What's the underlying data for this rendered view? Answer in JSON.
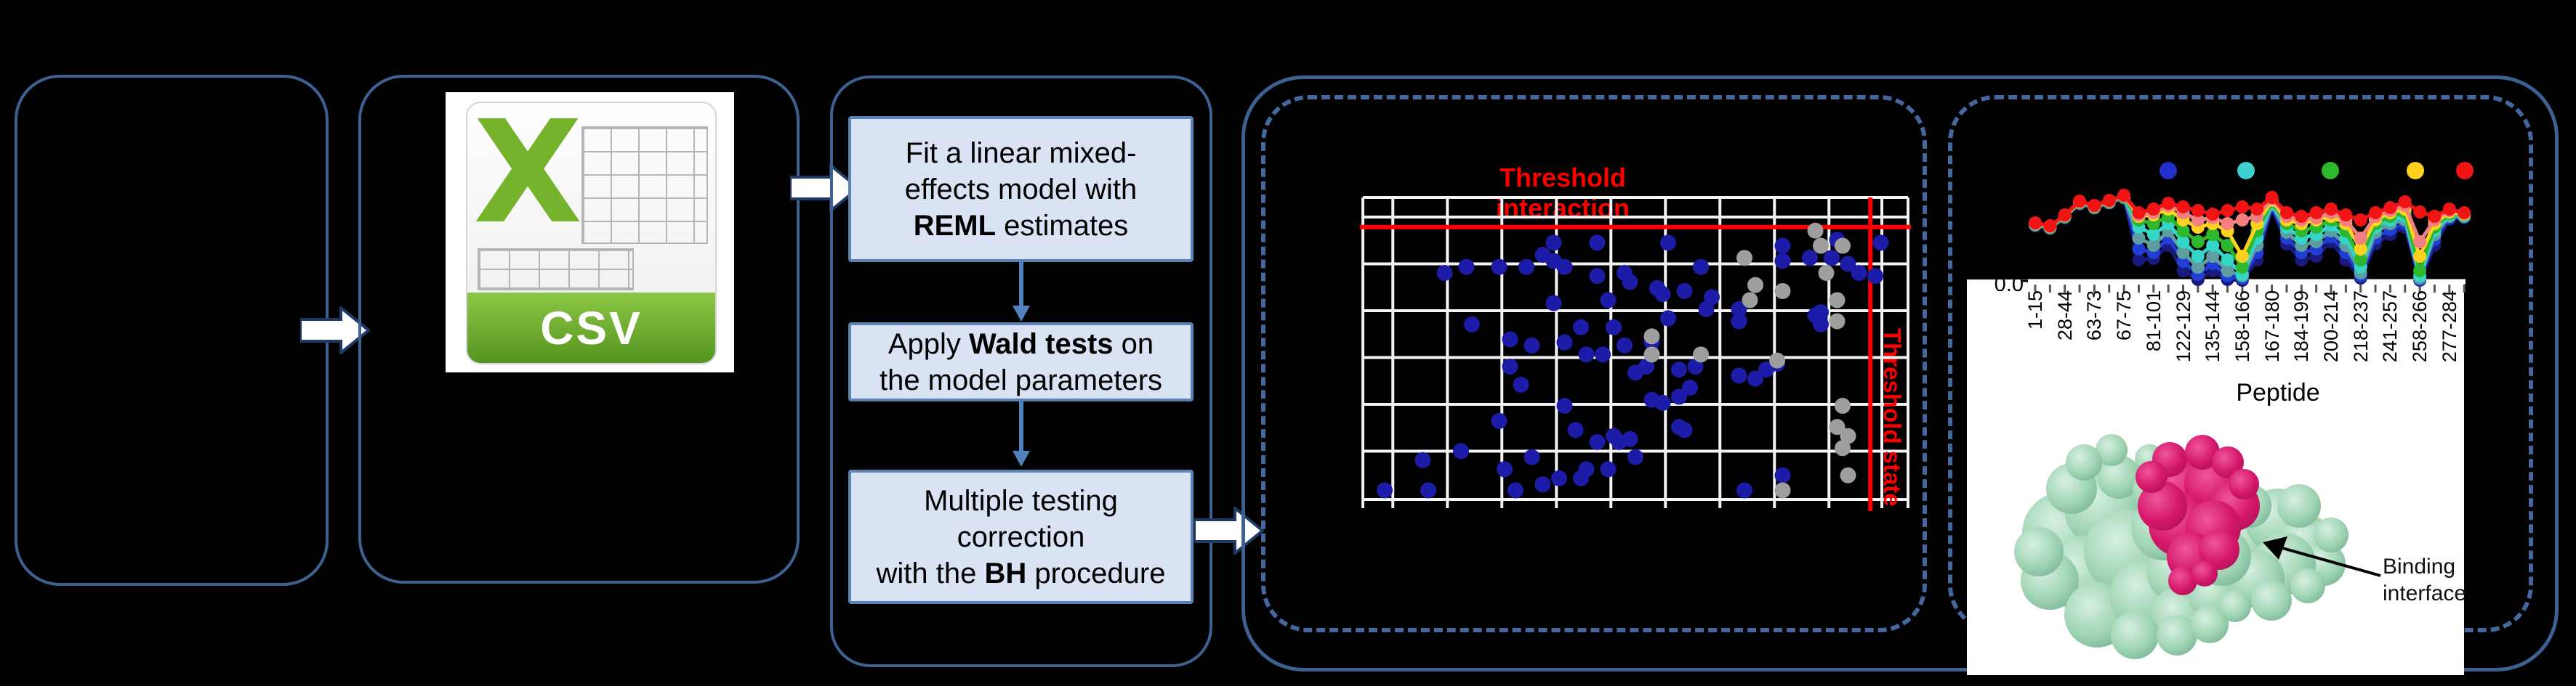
{
  "figure": {
    "bg": "#000000"
  },
  "border_colors": {
    "solid": "#3d6292",
    "dashed": "#44679e",
    "block_arrow_fill": "#ffffff",
    "block_arrow_outline": "#1f3864"
  },
  "csv_icon": {
    "letter": "X",
    "label": "CSV",
    "green": "#74b32b",
    "banner_top": "#8cc646",
    "banner_bottom": "#55951f"
  },
  "flowchart": {
    "step_fill": "#dae3f3",
    "step_border": "#5a82b4",
    "connector_color": "#4f81bd",
    "steps": [
      {
        "id": "reml",
        "lines": [
          [
            {
              "t": "Fit a linear mixed-"
            }
          ],
          [
            {
              "t": "effects model with"
            }
          ],
          [
            {
              "t": "REML",
              "b": true
            },
            {
              "t": " estimates"
            }
          ]
        ]
      },
      {
        "id": "wald",
        "lines": [
          [
            {
              "t": "Apply "
            },
            {
              "t": "Wald tests",
              "b": true
            },
            {
              "t": " on"
            }
          ],
          [
            {
              "t": "the model parameters"
            }
          ]
        ]
      },
      {
        "id": "bh",
        "lines": [
          [
            {
              "t": "Multiple testing"
            }
          ],
          [
            {
              "t": "correction"
            }
          ],
          [
            {
              "t": "with the "
            },
            {
              "t": "BH",
              "b": true
            },
            {
              "t": " procedure"
            }
          ]
        ]
      }
    ]
  },
  "chart_data": [
    {
      "type": "scatter",
      "title": "Threshold interaction",
      "title_color": "#ff0000",
      "x_threshold_label": "Threshold state",
      "grid_color": "#f2f2f2",
      "grid_on": true,
      "v_fracs": [
        0,
        0.055,
        0.155,
        0.255,
        0.355,
        0.455,
        0.555,
        0.655,
        0.755,
        0.855,
        0.952,
        1
      ],
      "h_fracs": [
        0,
        0.065,
        0.22,
        0.375,
        0.53,
        0.685,
        0.84,
        1
      ],
      "threshold_h_frac": 0.098,
      "threshold_v_frac": 0.931,
      "threshold_color": "#ff0000",
      "series": [
        {
          "name": "significant-interactions",
          "color": "#1c1ca8",
          "points": [
            [
              0.35,
              0.15
            ],
            [
              0.43,
              0.15
            ],
            [
              0.56,
              0.15
            ],
            [
              0.77,
              0.16
            ],
            [
              0.87,
              0.14
            ],
            [
              0.95,
              0.15
            ],
            [
              0.15,
              0.25
            ],
            [
              0.19,
              0.23
            ],
            [
              0.25,
              0.23
            ],
            [
              0.3,
              0.23
            ],
            [
              0.33,
              0.19
            ],
            [
              0.35,
              0.21
            ],
            [
              0.37,
              0.23
            ],
            [
              0.43,
              0.26
            ],
            [
              0.48,
              0.25
            ],
            [
              0.49,
              0.28
            ],
            [
              0.54,
              0.3
            ],
            [
              0.55,
              0.32
            ],
            [
              0.59,
              0.31
            ],
            [
              0.62,
              0.23
            ],
            [
              0.64,
              0.33
            ],
            [
              0.69,
              0.37
            ],
            [
              0.69,
              0.41
            ],
            [
              0.77,
              0.21
            ],
            [
              0.82,
              0.2
            ],
            [
              0.83,
              0.39
            ],
            [
              0.86,
              0.2
            ],
            [
              0.89,
              0.22
            ],
            [
              0.91,
              0.25
            ],
            [
              0.94,
              0.26
            ],
            [
              0.2,
              0.42
            ],
            [
              0.27,
              0.47
            ],
            [
              0.27,
              0.56
            ],
            [
              0.31,
              0.49
            ],
            [
              0.35,
              0.35
            ],
            [
              0.37,
              0.48
            ],
            [
              0.4,
              0.43
            ],
            [
              0.41,
              0.52
            ],
            [
              0.44,
              0.52
            ],
            [
              0.45,
              0.34
            ],
            [
              0.46,
              0.43
            ],
            [
              0.48,
              0.49
            ],
            [
              0.5,
              0.58
            ],
            [
              0.52,
              0.56
            ],
            [
              0.53,
              0.48
            ],
            [
              0.56,
              0.4
            ],
            [
              0.58,
              0.57
            ],
            [
              0.6,
              0.63
            ],
            [
              0.61,
              0.56
            ],
            [
              0.63,
              0.37
            ],
            [
              0.69,
              0.59
            ],
            [
              0.72,
              0.6
            ],
            [
              0.74,
              0.57
            ],
            [
              0.76,
              0.55
            ],
            [
              0.84,
              0.38
            ],
            [
              0.84,
              0.42
            ],
            [
              0.11,
              0.87
            ],
            [
              0.18,
              0.84
            ],
            [
              0.25,
              0.74
            ],
            [
              0.26,
              0.9
            ],
            [
              0.28,
              0.97
            ],
            [
              0.31,
              0.86
            ],
            [
              0.33,
              0.95
            ],
            [
              0.36,
              0.93
            ],
            [
              0.37,
              0.69
            ],
            [
              0.39,
              0.77
            ],
            [
              0.4,
              0.93
            ],
            [
              0.41,
              0.9
            ],
            [
              0.43,
              0.81
            ],
            [
              0.45,
              0.9
            ],
            [
              0.46,
              0.79
            ],
            [
              0.47,
              0.81
            ],
            [
              0.49,
              0.8
            ],
            [
              0.5,
              0.86
            ],
            [
              0.53,
              0.67
            ],
            [
              0.55,
              0.68
            ],
            [
              0.58,
              0.66
            ],
            [
              0.58,
              0.76
            ],
            [
              0.59,
              0.77
            ],
            [
              0.7,
              0.97
            ],
            [
              0.77,
              0.92
            ],
            [
              0.04,
              0.97
            ],
            [
              0.12,
              0.97
            ],
            [
              0.29,
              0.62
            ]
          ]
        },
        {
          "name": "filtered-points",
          "color": "#9e9e9e",
          "points": [
            [
              0.7,
              0.2
            ],
            [
              0.72,
              0.29
            ],
            [
              0.71,
              0.34
            ],
            [
              0.77,
              0.31
            ],
            [
              0.53,
              0.46
            ],
            [
              0.53,
              0.52
            ],
            [
              0.62,
              0.52
            ],
            [
              0.76,
              0.54
            ],
            [
              0.83,
              0.11
            ],
            [
              0.84,
              0.16
            ],
            [
              0.88,
              0.16
            ],
            [
              0.85,
              0.25
            ],
            [
              0.87,
              0.34
            ],
            [
              0.87,
              0.41
            ],
            [
              0.88,
              0.69
            ],
            [
              0.87,
              0.76
            ],
            [
              0.89,
              0.79
            ],
            [
              0.88,
              0.83
            ],
            [
              0.89,
              0.92
            ],
            [
              0.77,
              0.97
            ]
          ]
        }
      ]
    },
    {
      "type": "line",
      "xlabel": "Peptide",
      "y_tick_label": "0.0",
      "axis_color": "#ffffff",
      "tick_color": "#555555",
      "x_tick_labels": [
        "1-15",
        "28-44",
        "63-73",
        "67-75",
        "81-101",
        "122-129",
        "135-144",
        "158-166",
        "167-180",
        "184-199",
        "200-214",
        "218-237",
        "241-257",
        "258-266",
        "277-284"
      ],
      "legend_dots": {
        "y": 87,
        "xs": [
          193,
          300,
          416,
          533,
          601
        ],
        "colors": [
          "#2230cc",
          "#40d0d0",
          "#2eb82e",
          "#ffd21f",
          "#f01414"
        ]
      },
      "series": [
        {
          "name": "navy",
          "color": "#1a1a7e",
          "values": [
            77,
            73,
            88,
            107,
            101,
            108,
            115,
            30,
            32,
            50,
            15,
            3,
            15,
            3,
            2,
            30,
            102,
            52,
            30,
            35,
            55,
            30,
            5,
            52,
            65,
            75,
            2,
            50,
            86,
            88
          ]
        },
        {
          "name": "blue",
          "color": "#1f3fd4",
          "values": [
            78,
            74,
            89,
            108,
            102,
            109,
            116,
            45,
            40,
            60,
            28,
            10,
            25,
            8,
            5,
            40,
            104,
            60,
            40,
            45,
            62,
            40,
            8,
            60,
            72,
            80,
            3,
            58,
            88,
            89
          ]
        },
        {
          "name": "cadet-blue",
          "color": "#5f9ea0",
          "values": [
            78,
            74,
            89,
            108,
            102,
            109,
            116,
            60,
            50,
            70,
            40,
            20,
            35,
            15,
            8,
            50,
            106,
            68,
            50,
            55,
            70,
            50,
            12,
            68,
            80,
            85,
            5,
            65,
            90,
            90
          ]
        },
        {
          "name": "turquoise",
          "color": "#35d5c8",
          "values": [
            79,
            75,
            90,
            109,
            103,
            110,
            117,
            75,
            65,
            80,
            55,
            35,
            50,
            30,
            10,
            60,
            108,
            75,
            60,
            65,
            78,
            60,
            20,
            75,
            85,
            90,
            8,
            70,
            92,
            91
          ]
        },
        {
          "name": "green",
          "color": "#2eb82e",
          "values": [
            79,
            75,
            90,
            109,
            103,
            110,
            117,
            85,
            80,
            90,
            70,
            55,
            65,
            50,
            20,
            70,
            110,
            80,
            70,
            75,
            85,
            70,
            30,
            80,
            90,
            95,
            15,
            75,
            94,
            92
          ]
        },
        {
          "name": "yellow",
          "color": "#ffd21f",
          "values": [
            80,
            76,
            91,
            110,
            104,
            111,
            118,
            90,
            92,
            100,
            85,
            75,
            80,
            70,
            35,
            80,
            112,
            85,
            80,
            85,
            90,
            80,
            45,
            85,
            95,
            100,
            35,
            80,
            96,
            93
          ]
        },
        {
          "name": "salmon",
          "color": "#f28080",
          "values": [
            80,
            76,
            91,
            110,
            104,
            111,
            118,
            92,
            95,
            105,
            95,
            85,
            88,
            80,
            85,
            90,
            114,
            90,
            85,
            88,
            95,
            85,
            60,
            90,
            98,
            105,
            55,
            85,
            98,
            94
          ]
        },
        {
          "name": "red",
          "color": "#f01414",
          "values": [
            81,
            77,
            92,
            111,
            105,
            112,
            119,
            95,
            100,
            108,
            103,
            98,
            93,
            98,
            103,
            100,
            116,
            95,
            90,
            95,
            100,
            92,
            85,
            95,
            102,
            110,
            96,
            90,
            100,
            95
          ]
        }
      ]
    }
  ],
  "protein": {
    "binding_label_lines": [
      "Binding",
      "interface"
    ],
    "surface_color": "#9fd4b3",
    "surface_light": "#d6f0e1",
    "surface_dark": "#6da98c",
    "peptide_color": "#d4176b",
    "peptide_light": "#f0569c",
    "peptide_dark": "#a50f52",
    "arrow_color": "#000000"
  }
}
